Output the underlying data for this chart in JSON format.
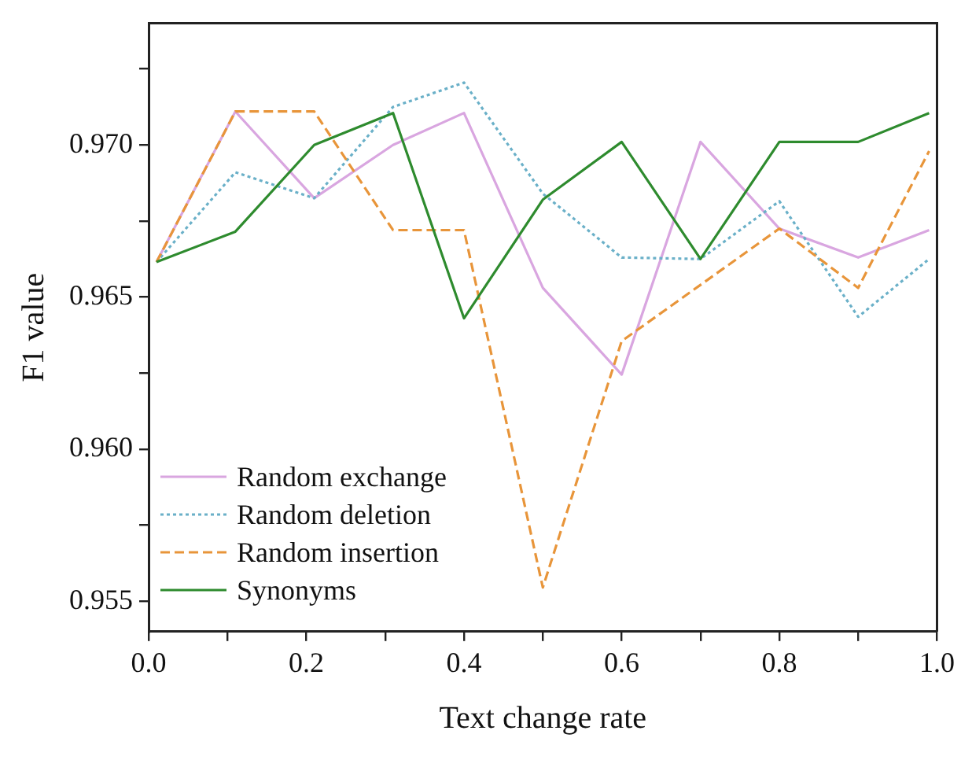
{
  "chart_data": {
    "type": "line",
    "xlabel": "Text change rate",
    "ylabel": "F1 value",
    "x": [
      0.01,
      0.11,
      0.21,
      0.31,
      0.4,
      0.5,
      0.6,
      0.7,
      0.8,
      0.9,
      0.99
    ],
    "series": [
      {
        "name": "Random exchange",
        "color": "#d9a6e0",
        "line_style": "solid",
        "values": [
          0.96615,
          0.9711,
          0.96825,
          0.97,
          0.97105,
          0.9653,
          0.96245,
          0.9701,
          0.96725,
          0.9663,
          0.9672
        ]
      },
      {
        "name": "Random deletion",
        "color": "#6ab0c8",
        "line_style": "dotted",
        "values": [
          0.96615,
          0.9691,
          0.96825,
          0.97125,
          0.97205,
          0.9684,
          0.9663,
          0.96625,
          0.96815,
          0.96435,
          0.96625
        ]
      },
      {
        "name": "Random insertion",
        "color": "#e8953a",
        "line_style": "dashed",
        "values": [
          0.96615,
          0.9711,
          0.9711,
          0.9672,
          0.9672,
          0.95545,
          0.96355,
          0.9654,
          0.96725,
          0.9653,
          0.9698
        ]
      },
      {
        "name": "Synonyms",
        "color": "#2e8b2e",
        "line_style": "solid",
        "values": [
          0.96615,
          0.96715,
          0.97,
          0.97105,
          0.9643,
          0.9682,
          0.9701,
          0.96625,
          0.9701,
          0.9701,
          0.97105
        ]
      }
    ],
    "xlim": [
      0,
      1.0
    ],
    "xticks": [
      {
        "value": 0,
        "label": "0.0"
      },
      {
        "value": 0.1,
        "label": null
      },
      0.2,
      {
        "value": 0.3,
        "label": null
      },
      0.4,
      {
        "value": 0.5,
        "label": null
      },
      0.6,
      {
        "value": 0.7,
        "label": null
      },
      0.8,
      {
        "value": 0.9,
        "label": null
      },
      {
        "value": 1.0,
        "label": "1.0"
      }
    ],
    "ylim": [
      0.954,
      0.974
    ],
    "yticks": [
      0.955,
      {
        "value": 0.9575,
        "label": null
      },
      {
        "value": 0.96,
        "label": "0.960"
      },
      {
        "value": 0.9625,
        "label": null
      },
      0.965,
      {
        "value": 0.9675,
        "label": null
      },
      {
        "value": 0.97,
        "label": "0.970"
      },
      {
        "value": 0.9725,
        "label": null
      }
    ],
    "grid": false,
    "legend": "bottom left",
    "marker": "none"
  }
}
